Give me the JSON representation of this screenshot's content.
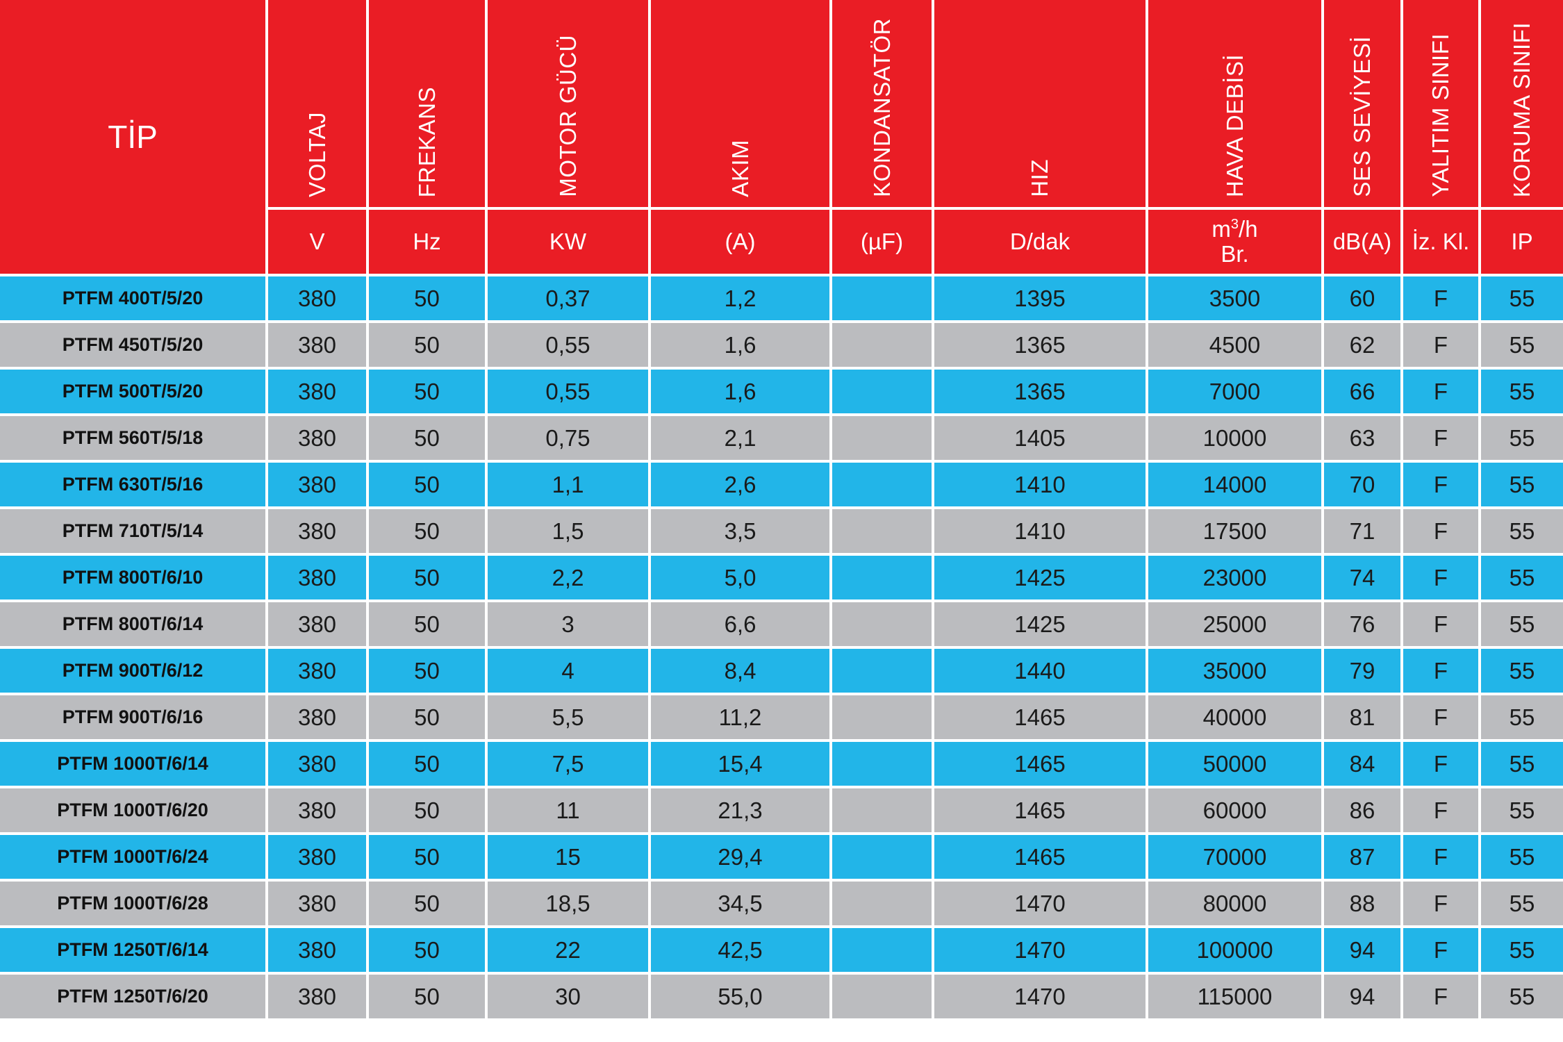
{
  "colors": {
    "header": "#ea1d25",
    "row_blue": "#22b5e8",
    "row_gray": "#bbbcbf",
    "separator": "#ffffff"
  },
  "header": {
    "tip": "TİP",
    "columns": [
      {
        "label": "VOLTAJ",
        "unit": "V"
      },
      {
        "label": "FREKANS",
        "unit": "Hz"
      },
      {
        "label": "MOTOR GÜCÜ",
        "unit": "KW"
      },
      {
        "label": "AKIM",
        "unit": "(A)"
      },
      {
        "label": "KONDANSATÖR",
        "unit": "(µF)"
      },
      {
        "label": "HIZ",
        "unit": "D/dak"
      },
      {
        "label": "HAVA DEBİSİ",
        "unit_main": "m",
        "unit_sup": "3",
        "unit_tail": "/h",
        "unit_line2": "Br."
      },
      {
        "label": "SES SEVİYESİ",
        "unit": "dB(A)"
      },
      {
        "label": "YALITIM SINIFI",
        "unit": "İz. Kl."
      },
      {
        "label": "KORUMA SINIFI",
        "unit": "IP"
      }
    ]
  },
  "rows": [
    [
      "PTFM 400T/5/20",
      "380",
      "50",
      "0,37",
      "1,2",
      "",
      "1395",
      "3500",
      "60",
      "F",
      "55"
    ],
    [
      "PTFM 450T/5/20",
      "380",
      "50",
      "0,55",
      "1,6",
      "",
      "1365",
      "4500",
      "62",
      "F",
      "55"
    ],
    [
      "PTFM 500T/5/20",
      "380",
      "50",
      "0,55",
      "1,6",
      "",
      "1365",
      "7000",
      "66",
      "F",
      "55"
    ],
    [
      "PTFM 560T/5/18",
      "380",
      "50",
      "0,75",
      "2,1",
      "",
      "1405",
      "10000",
      "63",
      "F",
      "55"
    ],
    [
      "PTFM 630T/5/16",
      "380",
      "50",
      "1,1",
      "2,6",
      "",
      "1410",
      "14000",
      "70",
      "F",
      "55"
    ],
    [
      "PTFM 710T/5/14",
      "380",
      "50",
      "1,5",
      "3,5",
      "",
      "1410",
      "17500",
      "71",
      "F",
      "55"
    ],
    [
      "PTFM 800T/6/10",
      "380",
      "50",
      "2,2",
      "5,0",
      "",
      "1425",
      "23000",
      "74",
      "F",
      "55"
    ],
    [
      "PTFM 800T/6/14",
      "380",
      "50",
      "3",
      "6,6",
      "",
      "1425",
      "25000",
      "76",
      "F",
      "55"
    ],
    [
      "PTFM 900T/6/12",
      "380",
      "50",
      "4",
      "8,4",
      "",
      "1440",
      "35000",
      "79",
      "F",
      "55"
    ],
    [
      "PTFM 900T/6/16",
      "380",
      "50",
      "5,5",
      "11,2",
      "",
      "1465",
      "40000",
      "81",
      "F",
      "55"
    ],
    [
      "PTFM 1000T/6/14",
      "380",
      "50",
      "7,5",
      "15,4",
      "",
      "1465",
      "50000",
      "84",
      "F",
      "55"
    ],
    [
      "PTFM 1000T/6/20",
      "380",
      "50",
      "11",
      "21,3",
      "",
      "1465",
      "60000",
      "86",
      "F",
      "55"
    ],
    [
      "PTFM 1000T/6/24",
      "380",
      "50",
      "15",
      "29,4",
      "",
      "1465",
      "70000",
      "87",
      "F",
      "55"
    ],
    [
      "PTFM 1000T/6/28",
      "380",
      "50",
      "18,5",
      "34,5",
      "",
      "1470",
      "80000",
      "88",
      "F",
      "55"
    ],
    [
      "PTFM 1250T/6/14",
      "380",
      "50",
      "22",
      "42,5",
      "",
      "1470",
      "100000",
      "94",
      "F",
      "55"
    ],
    [
      "PTFM 1250T/6/20",
      "380",
      "50",
      "30",
      "55,0",
      "",
      "1470",
      "115000",
      "94",
      "F",
      "55"
    ]
  ]
}
